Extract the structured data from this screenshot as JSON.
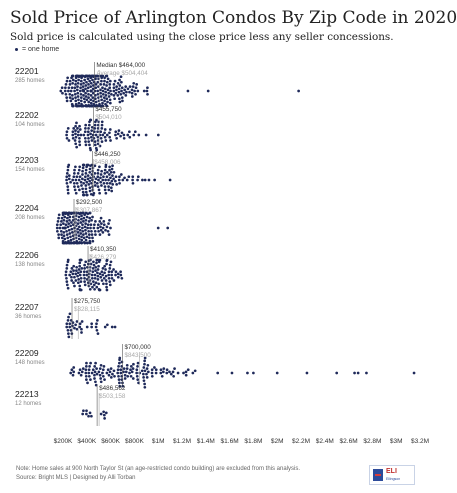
{
  "title": "Sold Price of Arlington Condos By Zip Code in 2020",
  "subtitle": "Sold price is calculated using the close price less any seller concessions.",
  "legend_text": "= one home",
  "note_line1": "Note: Home sales at 900 North Taylor St (an age-restricted condo building) are excluded from this analysis.",
  "note_line2": "Source: Bright MLS | Designed by Alli Torban",
  "logo": {
    "name": "ELI",
    "sub": "Ellingson"
  },
  "colors": {
    "dot": "#1f2a5a",
    "median": "#555555",
    "average": "#a9a9a9",
    "axis_text": "#333333"
  },
  "chart_data": {
    "type": "scatter",
    "style": "beeswarm",
    "x_unit": "USD",
    "xlim": [
      200000,
      3200000
    ],
    "x_ticks": [
      {
        "value": 200000,
        "label": "$200K"
      },
      {
        "value": 400000,
        "label": "$400K"
      },
      {
        "value": 600000,
        "label": "$600K"
      },
      {
        "value": 800000,
        "label": "$800K"
      },
      {
        "value": 1000000,
        "label": "$1M"
      },
      {
        "value": 1200000,
        "label": "$1.2M"
      },
      {
        "value": 1400000,
        "label": "$1.4M"
      },
      {
        "value": 1600000,
        "label": "$1.6M"
      },
      {
        "value": 1800000,
        "label": "$1.8M"
      },
      {
        "value": 2000000,
        "label": "$2M"
      },
      {
        "value": 2200000,
        "label": "$2.2M"
      },
      {
        "value": 2400000,
        "label": "$2.4M"
      },
      {
        "value": 2600000,
        "label": "$2.6M"
      },
      {
        "value": 2800000,
        "label": "$2.8M"
      },
      {
        "value": 3000000,
        "label": "$3M"
      },
      {
        "value": 3200000,
        "label": "$3.2M"
      }
    ],
    "groups": [
      {
        "zip": "22201",
        "count_label": "285 homes",
        "count": 285,
        "median": 464000,
        "median_label": "Median $464,000",
        "average": 504404,
        "average_label": "Average $504,404",
        "outliers": [
          1250000,
          1420000,
          2180000
        ],
        "dist": [
          [
            180000,
            0.05
          ],
          [
            250000,
            0.35
          ],
          [
            300000,
            0.7
          ],
          [
            350000,
            0.95
          ],
          [
            400000,
            1
          ],
          [
            450000,
            0.95
          ],
          [
            500000,
            0.85
          ],
          [
            550000,
            0.7
          ],
          [
            600000,
            0.55
          ],
          [
            650000,
            0.42
          ],
          [
            700000,
            0.3
          ],
          [
            750000,
            0.2
          ],
          [
            800000,
            0.13
          ],
          [
            850000,
            0.09
          ],
          [
            900000,
            0.06
          ],
          [
            950000,
            0.04
          ],
          [
            1000000,
            0.02
          ]
        ]
      },
      {
        "zip": "22202",
        "count_label": "104 homes",
        "count": 104,
        "median": 455750,
        "median_label": "$455,750",
        "average": 504010,
        "average_label": "$504,010",
        "outliers": [],
        "dist": [
          [
            230000,
            0.2
          ],
          [
            280000,
            0.45
          ],
          [
            330000,
            0.6
          ],
          [
            380000,
            0.75
          ],
          [
            430000,
            0.9
          ],
          [
            480000,
            1
          ],
          [
            530000,
            0.8
          ],
          [
            580000,
            0.6
          ],
          [
            630000,
            0.45
          ],
          [
            680000,
            0.35
          ],
          [
            730000,
            0.25
          ],
          [
            780000,
            0.18
          ],
          [
            830000,
            0.12
          ],
          [
            880000,
            0.08
          ],
          [
            930000,
            0.06
          ],
          [
            980000,
            0.05
          ],
          [
            1040000,
            0.04
          ]
        ]
      },
      {
        "zip": "22203",
        "count_label": "154 homes",
        "count": 154,
        "median": 446250,
        "median_label": "$446,250",
        "average": 458006,
        "average_label": "$458,006",
        "outliers": [
          1100000
        ],
        "dist": [
          [
            230000,
            0.35
          ],
          [
            280000,
            0.55
          ],
          [
            330000,
            0.7
          ],
          [
            380000,
            0.85
          ],
          [
            430000,
            1
          ],
          [
            480000,
            0.9
          ],
          [
            530000,
            0.75
          ],
          [
            580000,
            0.6
          ],
          [
            630000,
            0.45
          ],
          [
            680000,
            0.35
          ],
          [
            730000,
            0.25
          ],
          [
            780000,
            0.17
          ],
          [
            830000,
            0.12
          ],
          [
            880000,
            0.09
          ],
          [
            930000,
            0.06
          ],
          [
            980000,
            0.04
          ]
        ]
      },
      {
        "zip": "22204",
        "count_label": "208 homes",
        "count": 208,
        "median": 292500,
        "median_label": "$292,500",
        "average": 307867,
        "average_label": "$307,867",
        "outliers": [
          1000000,
          1080000
        ],
        "dist": [
          [
            150000,
            0.25
          ],
          [
            200000,
            0.7
          ],
          [
            250000,
            1
          ],
          [
            300000,
            0.95
          ],
          [
            350000,
            0.75
          ],
          [
            400000,
            0.55
          ],
          [
            450000,
            0.4
          ],
          [
            500000,
            0.28
          ],
          [
            550000,
            0.18
          ],
          [
            600000,
            0.1
          ],
          [
            650000,
            0.06
          ]
        ]
      },
      {
        "zip": "22206",
        "count_label": "138 homes",
        "count": 138,
        "median": 410350,
        "median_label": "$410,350",
        "average": 426279,
        "average_label": "$426,279",
        "outliers": [],
        "dist": [
          [
            220000,
            0.3
          ],
          [
            270000,
            0.4
          ],
          [
            320000,
            0.65
          ],
          [
            370000,
            0.9
          ],
          [
            420000,
            1
          ],
          [
            470000,
            0.85
          ],
          [
            520000,
            0.6
          ],
          [
            570000,
            0.4
          ],
          [
            620000,
            0.25
          ],
          [
            670000,
            0.12
          ],
          [
            720000,
            0.06
          ]
        ]
      },
      {
        "zip": "22207",
        "count_label": "36 homes",
        "count": 36,
        "median": 275750,
        "median_label": "$275,750",
        "average": 328115,
        "average_label": "$328,115",
        "outliers": [],
        "dist": [
          [
            230000,
            0.6
          ],
          [
            270000,
            1
          ],
          [
            310000,
            0.6
          ],
          [
            360000,
            0.3
          ],
          [
            420000,
            0.25
          ],
          [
            480000,
            0.2
          ],
          [
            540000,
            0.15
          ],
          [
            600000,
            0.12
          ],
          [
            660000,
            0.08
          ],
          [
            720000,
            0.05
          ]
        ]
      },
      {
        "zip": "22209",
        "count_label": "148 homes",
        "count": 148,
        "median": 700000,
        "median_label": "$700,000",
        "average": 843500,
        "average_label": "$843,500",
        "outliers": [
          1500000,
          1620000,
          1750000,
          1800000,
          2000000,
          2250000,
          2500000,
          2650000,
          2680000,
          2750000,
          3150000
        ],
        "dist": [
          [
            260000,
            0.3
          ],
          [
            320000,
            0.45
          ],
          [
            380000,
            0.55
          ],
          [
            440000,
            0.6
          ],
          [
            500000,
            0.7
          ],
          [
            560000,
            0.8
          ],
          [
            620000,
            0.9
          ],
          [
            680000,
            1
          ],
          [
            740000,
            0.9
          ],
          [
            800000,
            0.75
          ],
          [
            860000,
            0.6
          ],
          [
            920000,
            0.5
          ],
          [
            980000,
            0.4
          ],
          [
            1040000,
            0.32
          ],
          [
            1100000,
            0.26
          ],
          [
            1160000,
            0.2
          ],
          [
            1220000,
            0.15
          ],
          [
            1280000,
            0.12
          ],
          [
            1340000,
            0.1
          ],
          [
            1400000,
            0.08
          ]
        ]
      },
      {
        "zip": "22213",
        "count_label": "12 homes",
        "count": 12,
        "median": 486562,
        "median_label": "$486,562",
        "average": 503158,
        "average_label": "$503,158",
        "outliers": [],
        "dist": [
          [
            360000,
            0.5
          ],
          [
            420000,
            0.8
          ],
          [
            470000,
            1
          ],
          [
            520000,
            0.9
          ],
          [
            580000,
            0.6
          ],
          [
            640000,
            0.4
          ]
        ]
      }
    ]
  }
}
